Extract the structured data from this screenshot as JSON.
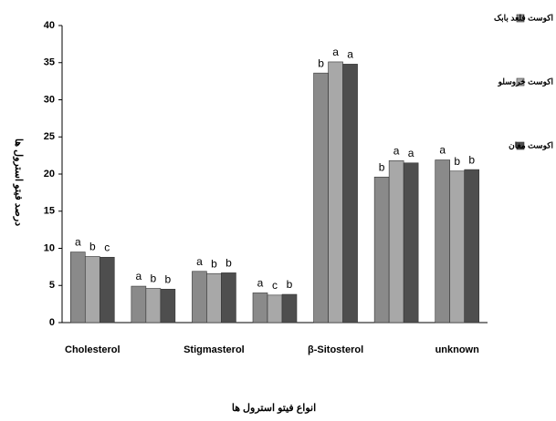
{
  "chart_data": {
    "type": "bar",
    "ylabel": "درصد فیتو استرول ها",
    "xlabel": "انواع فیتو استرول ها",
    "categories": [
      "Cholesterol",
      null,
      "Stigmasterol",
      null,
      "β-Sitosterol",
      null,
      "unknown"
    ],
    "series": [
      {
        "name": "اکوست فلعد بابک",
        "color": "#8a8a8a",
        "values": [
          9.5,
          4.9,
          6.9,
          4.0,
          33.6,
          19.6,
          21.9
        ],
        "letters": [
          "a",
          "a",
          "a",
          "a",
          "b",
          "b",
          "a"
        ]
      },
      {
        "name": "اکوست خروسلو",
        "color": "#a8a8a8",
        "values": [
          8.9,
          4.6,
          6.6,
          3.7,
          35.1,
          21.8,
          20.4
        ],
        "letters": [
          "b",
          "b",
          "b",
          "c",
          "a",
          "a",
          "b"
        ]
      },
      {
        "name": "اکوست مغان",
        "color": "#4e4e4e",
        "values": [
          8.8,
          4.5,
          6.7,
          3.8,
          34.8,
          21.5,
          20.6
        ],
        "letters": [
          "c",
          "b",
          "b",
          "b",
          "a",
          "a",
          "b"
        ]
      }
    ],
    "ylim": [
      0,
      40
    ],
    "yticks": [
      0,
      5,
      10,
      15,
      20,
      25,
      30,
      35,
      40
    ],
    "grid": false,
    "legend": "right"
  }
}
